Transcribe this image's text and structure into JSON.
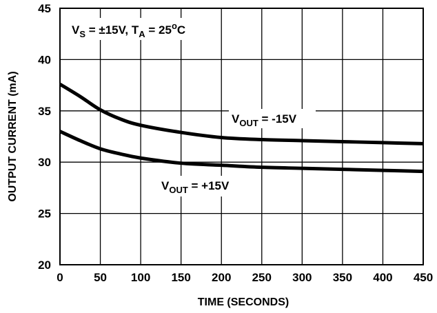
{
  "chart_data": {
    "type": "line",
    "xlabel": "TIME (SECONDS)",
    "ylabel": "OUTPUT CURRENT (mA)",
    "xlim": [
      0,
      450
    ],
    "ylim": [
      20,
      45
    ],
    "xticks": [
      0,
      50,
      100,
      150,
      200,
      250,
      300,
      350,
      400,
      450
    ],
    "yticks": [
      20,
      25,
      30,
      35,
      40,
      45
    ],
    "grid": true,
    "annotation_conditions": {
      "v": "V",
      "v_sub": "S",
      "v_value": " = ±15V, ",
      "t": "T",
      "t_sub": "A",
      "t_value": " = 25",
      "t_sup": "o",
      "t_unit": "C"
    },
    "series": [
      {
        "label_main": "V",
        "label_sub": "OUT",
        "label_value": " = -15V",
        "color": "#000000",
        "x": [
          0,
          25,
          50,
          75,
          100,
          150,
          200,
          250,
          300,
          350,
          400,
          450
        ],
        "y": [
          37.6,
          36.4,
          35.1,
          34.2,
          33.6,
          32.9,
          32.4,
          32.2,
          32.1,
          32.0,
          31.9,
          31.8
        ]
      },
      {
        "label_main": "V",
        "label_sub": "OUT",
        "label_value": " = +15V",
        "color": "#000000",
        "x": [
          0,
          25,
          50,
          75,
          100,
          150,
          200,
          250,
          300,
          350,
          400,
          450
        ],
        "y": [
          33.0,
          32.1,
          31.3,
          30.8,
          30.4,
          29.9,
          29.7,
          29.5,
          29.4,
          29.3,
          29.2,
          29.1
        ]
      }
    ]
  }
}
